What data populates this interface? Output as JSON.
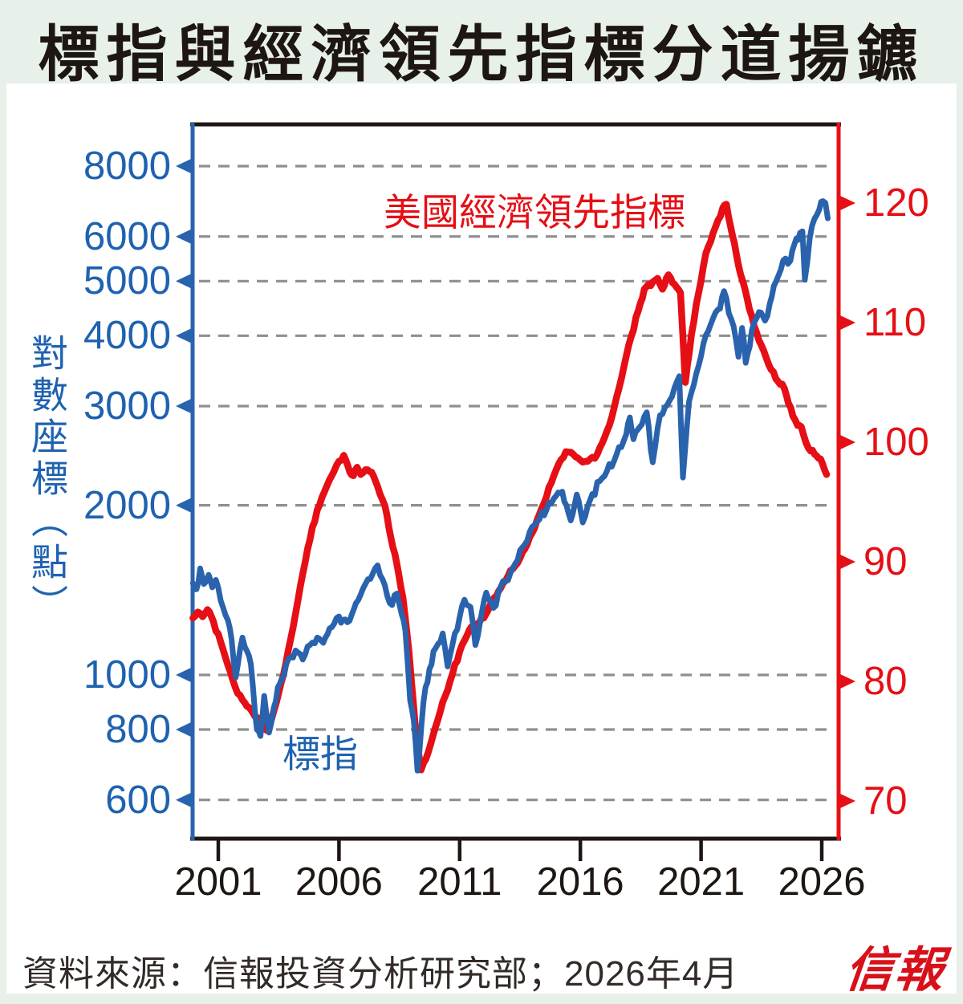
{
  "title": "標指與經濟領先指標分道揚鑣",
  "footer": {
    "source": "資料來源：信報投資分析研究部；2026年4月",
    "logo": "信報"
  },
  "chart_data": {
    "type": "line",
    "title": "標指與經濟領先指標分道揚鑣",
    "grid": "horizontal dashed gridlines at left-axis tick values",
    "legend_position": "inline text labels on plot",
    "x_axis": {
      "ticks": [
        2001,
        2006,
        2011,
        2016,
        2021,
        2026
      ],
      "range": [
        1999.9,
        2026.7
      ]
    },
    "y_left": {
      "label": "對數座標（點）",
      "scale": "log",
      "color": "#1e62b0",
      "ticks": [
        8000,
        6000,
        5000,
        4000,
        3000,
        2000,
        1000,
        800,
        600
      ]
    },
    "y_right": {
      "scale": "linear",
      "color": "#e50f15",
      "ticks": [
        120,
        110,
        100,
        90,
        80,
        70
      ]
    },
    "series": [
      {
        "name": "美國經濟領先指標",
        "axis": "right",
        "color": "#e50f15",
        "points": [
          [
            1999.95,
            85.3
          ],
          [
            2000.15,
            85.8
          ],
          [
            2000.35,
            85.4
          ],
          [
            2000.55,
            86.0
          ],
          [
            2000.8,
            85.0
          ],
          [
            2001.1,
            83.3
          ],
          [
            2001.5,
            80.8
          ],
          [
            2001.8,
            79.0
          ],
          [
            2002.1,
            78.2
          ],
          [
            2002.45,
            77.3
          ],
          [
            2002.8,
            76.6
          ],
          [
            2003.0,
            75.9
          ],
          [
            2003.2,
            76.8
          ],
          [
            2003.5,
            79.0
          ],
          [
            2003.8,
            81.5
          ],
          [
            2004.1,
            84.5
          ],
          [
            2004.5,
            89.0
          ],
          [
            2004.9,
            92.9
          ],
          [
            2005.3,
            95.4
          ],
          [
            2005.7,
            97.2
          ],
          [
            2006.0,
            98.4
          ],
          [
            2006.2,
            98.9
          ],
          [
            2006.45,
            97.5
          ],
          [
            2006.6,
            97.2
          ],
          [
            2006.75,
            97.9
          ],
          [
            2006.9,
            97.3
          ],
          [
            2007.1,
            97.7
          ],
          [
            2007.35,
            97.5
          ],
          [
            2007.6,
            96.3
          ],
          [
            2007.9,
            94.7
          ],
          [
            2008.15,
            92.0
          ],
          [
            2008.4,
            89.8
          ],
          [
            2008.65,
            87.0
          ],
          [
            2008.9,
            82.5
          ],
          [
            2009.15,
            76.5
          ],
          [
            2009.4,
            72.6
          ],
          [
            2009.6,
            73.5
          ],
          [
            2009.9,
            75.5
          ],
          [
            2010.2,
            77.5
          ],
          [
            2010.6,
            80.0
          ],
          [
            2011.0,
            82.5
          ],
          [
            2011.4,
            84.3
          ],
          [
            2011.7,
            84.8
          ],
          [
            2012.0,
            85.3
          ],
          [
            2012.35,
            86.7
          ],
          [
            2012.7,
            87.8
          ],
          [
            2013.0,
            88.8
          ],
          [
            2013.5,
            90.3
          ],
          [
            2014.0,
            92.4
          ],
          [
            2014.4,
            94.5
          ],
          [
            2015.0,
            97.7
          ],
          [
            2015.4,
            99.2
          ],
          [
            2015.7,
            99.0
          ],
          [
            2016.0,
            98.5
          ],
          [
            2016.3,
            98.4
          ],
          [
            2016.7,
            99.0
          ],
          [
            2017.2,
            101.4
          ],
          [
            2017.6,
            104.5
          ],
          [
            2018.0,
            108.1
          ],
          [
            2018.4,
            111.0
          ],
          [
            2018.65,
            112.8
          ],
          [
            2019.0,
            113.4
          ],
          [
            2019.2,
            113.7
          ],
          [
            2019.4,
            112.8
          ],
          [
            2019.65,
            114.0
          ],
          [
            2019.9,
            113.2
          ],
          [
            2020.15,
            112.5
          ],
          [
            2020.35,
            105.0
          ],
          [
            2020.6,
            109.0
          ],
          [
            2020.9,
            112.5
          ],
          [
            2021.2,
            115.8
          ],
          [
            2021.6,
            118.0
          ],
          [
            2021.9,
            119.6
          ],
          [
            2022.05,
            119.9
          ],
          [
            2022.3,
            117.3
          ],
          [
            2022.55,
            114.8
          ],
          [
            2022.9,
            112.1
          ],
          [
            2023.2,
            109.7
          ],
          [
            2023.5,
            108.1
          ],
          [
            2023.8,
            106.5
          ],
          [
            2024.1,
            105.3
          ],
          [
            2024.45,
            104.5
          ],
          [
            2024.8,
            102.2
          ],
          [
            2025.0,
            101.4
          ],
          [
            2025.15,
            101.3
          ],
          [
            2025.25,
            100.6
          ],
          [
            2025.45,
            99.5
          ],
          [
            2025.7,
            99.0
          ],
          [
            2025.95,
            98.6
          ],
          [
            2026.2,
            97.3
          ]
        ]
      },
      {
        "name": "標指",
        "axis": "left",
        "color": "#2a63ad",
        "points": [
          [
            1999.95,
            1455
          ],
          [
            2000.1,
            1420
          ],
          [
            2000.25,
            1545
          ],
          [
            2000.4,
            1450
          ],
          [
            2000.6,
            1505
          ],
          [
            2000.75,
            1430
          ],
          [
            2000.9,
            1475
          ],
          [
            2001.1,
            1355
          ],
          [
            2001.4,
            1250
          ],
          [
            2001.55,
            1160
          ],
          [
            2001.72,
            990
          ],
          [
            2002.0,
            1165
          ],
          [
            2002.2,
            1100
          ],
          [
            2002.35,
            1045
          ],
          [
            2002.6,
            800
          ],
          [
            2002.75,
            779
          ],
          [
            2002.9,
            918
          ],
          [
            2003.1,
            790
          ],
          [
            2003.3,
            875
          ],
          [
            2003.55,
            965
          ],
          [
            2003.8,
            1040
          ],
          [
            2004.2,
            1105
          ],
          [
            2004.5,
            1065
          ],
          [
            2004.8,
            1130
          ],
          [
            2005.1,
            1165
          ],
          [
            2005.35,
            1140
          ],
          [
            2005.7,
            1215
          ],
          [
            2006.0,
            1270
          ],
          [
            2006.35,
            1240
          ],
          [
            2006.7,
            1340
          ],
          [
            2007.0,
            1425
          ],
          [
            2007.3,
            1480
          ],
          [
            2007.6,
            1565
          ],
          [
            2007.8,
            1480
          ],
          [
            2008.0,
            1380
          ],
          [
            2008.2,
            1330
          ],
          [
            2008.4,
            1395
          ],
          [
            2008.6,
            1280
          ],
          [
            2008.75,
            1200
          ],
          [
            2008.95,
            900
          ],
          [
            2009.1,
            830
          ],
          [
            2009.25,
            676
          ],
          [
            2009.5,
            895
          ],
          [
            2009.75,
            1025
          ],
          [
            2010.0,
            1115
          ],
          [
            2010.3,
            1185
          ],
          [
            2010.5,
            1035
          ],
          [
            2010.8,
            1185
          ],
          [
            2011.2,
            1360
          ],
          [
            2011.45,
            1320
          ],
          [
            2011.65,
            1130
          ],
          [
            2011.85,
            1245
          ],
          [
            2012.1,
            1400
          ],
          [
            2012.4,
            1315
          ],
          [
            2012.7,
            1435
          ],
          [
            2013.1,
            1515
          ],
          [
            2013.6,
            1685
          ],
          [
            2014.1,
            1845
          ],
          [
            2014.6,
            1965
          ],
          [
            2015.0,
            2080
          ],
          [
            2015.25,
            2115
          ],
          [
            2015.6,
            1880
          ],
          [
            2015.85,
            2090
          ],
          [
            2016.1,
            1865
          ],
          [
            2016.5,
            2095
          ],
          [
            2016.9,
            2235
          ],
          [
            2017.4,
            2400
          ],
          [
            2017.9,
            2675
          ],
          [
            2018.05,
            2865
          ],
          [
            2018.2,
            2620
          ],
          [
            2018.55,
            2785
          ],
          [
            2018.75,
            2925
          ],
          [
            2019.0,
            2385
          ],
          [
            2019.3,
            2890
          ],
          [
            2019.6,
            3015
          ],
          [
            2019.9,
            3235
          ],
          [
            2020.1,
            3390
          ],
          [
            2020.25,
            2240
          ],
          [
            2020.5,
            3055
          ],
          [
            2020.8,
            3425
          ],
          [
            2021.1,
            3875
          ],
          [
            2021.4,
            4190
          ],
          [
            2021.7,
            4455
          ],
          [
            2021.95,
            4800
          ],
          [
            2022.15,
            4385
          ],
          [
            2022.35,
            4155
          ],
          [
            2022.55,
            3670
          ],
          [
            2022.7,
            4130
          ],
          [
            2022.85,
            3580
          ],
          [
            2023.1,
            4085
          ],
          [
            2023.4,
            4405
          ],
          [
            2023.65,
            4255
          ],
          [
            2023.85,
            4565
          ],
          [
            2024.1,
            4985
          ],
          [
            2024.3,
            5235
          ],
          [
            2024.5,
            5485
          ],
          [
            2024.7,
            5435
          ],
          [
            2024.95,
            5955
          ],
          [
            2025.1,
            6090
          ],
          [
            2025.2,
            6130
          ],
          [
            2025.3,
            5030
          ],
          [
            2025.5,
            5955
          ],
          [
            2025.7,
            6455
          ],
          [
            2025.9,
            6705
          ],
          [
            2026.05,
            6935
          ],
          [
            2026.15,
            6885
          ],
          [
            2026.25,
            6465
          ]
        ]
      }
    ],
    "colors": {
      "background": "#e7f0e9",
      "panel": "#ffffff",
      "gridline": "#8f8f8f",
      "frame": "#1d1613",
      "blue_series": "#2a63ad",
      "red_series": "#e50f15"
    }
  }
}
